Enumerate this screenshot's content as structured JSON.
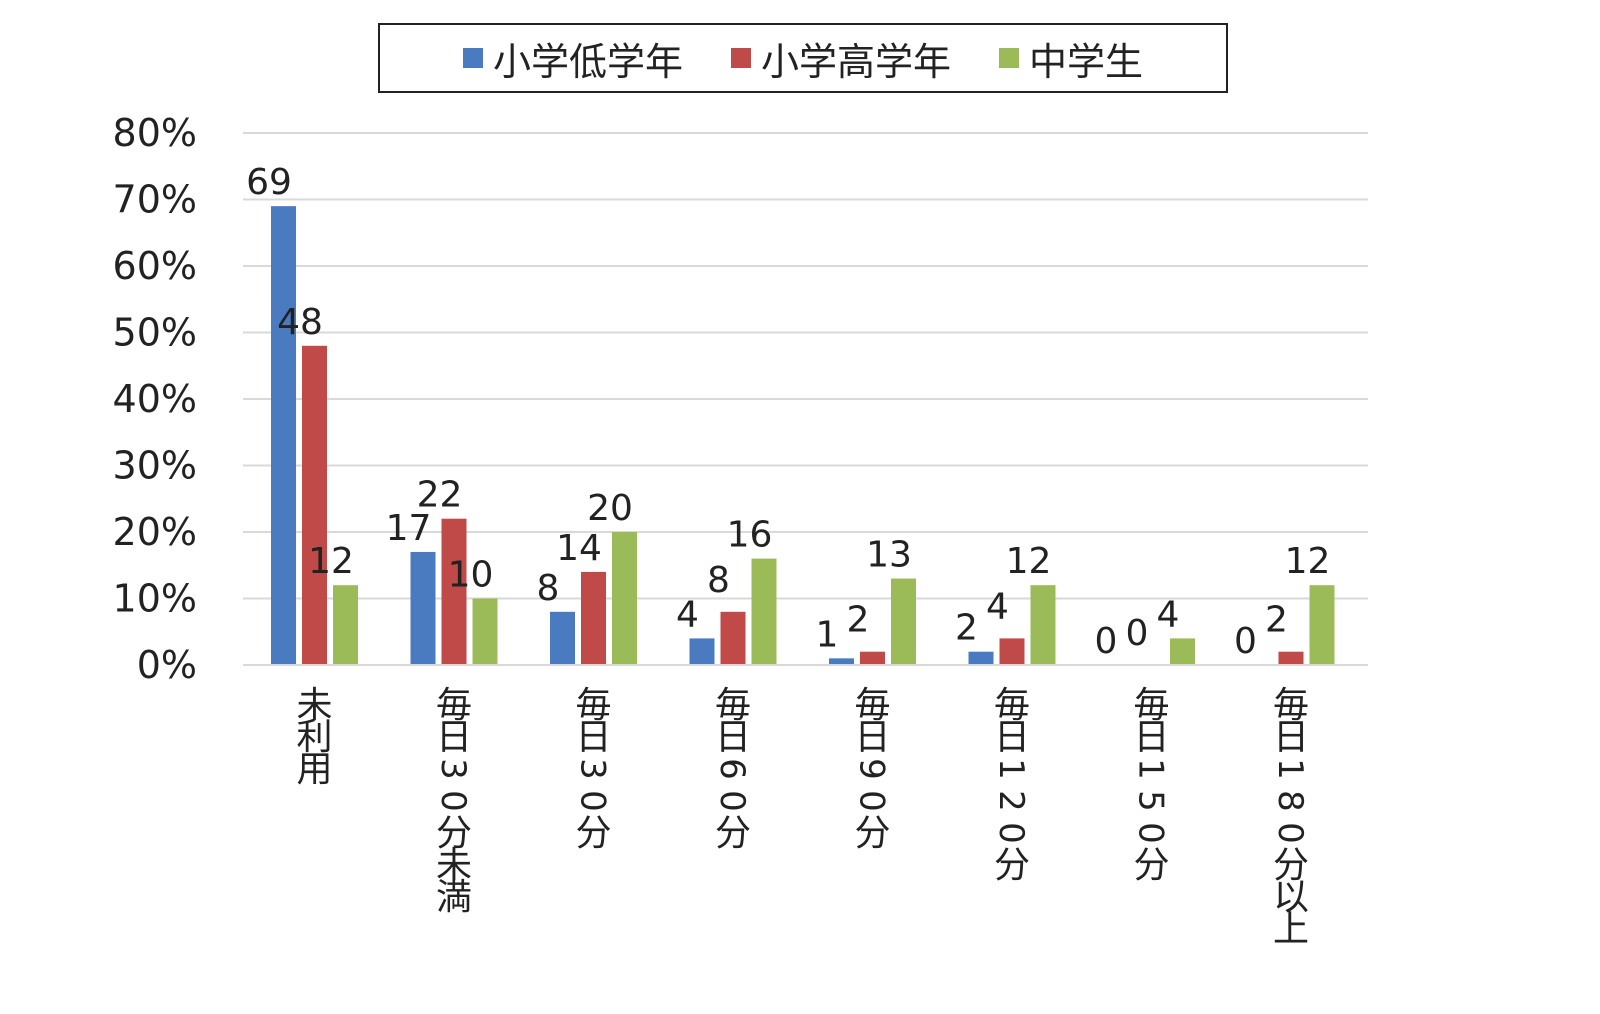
{
  "chart_data": {
    "type": "bar",
    "categories": [
      "未利用",
      "毎日30分未満",
      "毎日30分",
      "毎日60分",
      "毎日90分",
      "毎日120分",
      "毎日150分",
      "毎日180分以上"
    ],
    "series": [
      {
        "name": "小学低学年",
        "color": "#4a7bc0",
        "values": [
          69,
          17,
          8,
          4,
          1,
          2,
          0,
          0
        ]
      },
      {
        "name": "小学高学年",
        "color": "#c04a48",
        "values": [
          48,
          22,
          14,
          8,
          2,
          4,
          0,
          2
        ]
      },
      {
        "name": "中学生",
        "color": "#9bbb59",
        "values": [
          12,
          10,
          20,
          16,
          13,
          12,
          4,
          12
        ]
      }
    ],
    "yticks": [
      "0%",
      "10%",
      "20%",
      "30%",
      "40%",
      "50%",
      "60%",
      "70%",
      "80%"
    ],
    "ylim": [
      0,
      80
    ],
    "grid": true,
    "legend_position": "top",
    "data_labels": true
  }
}
